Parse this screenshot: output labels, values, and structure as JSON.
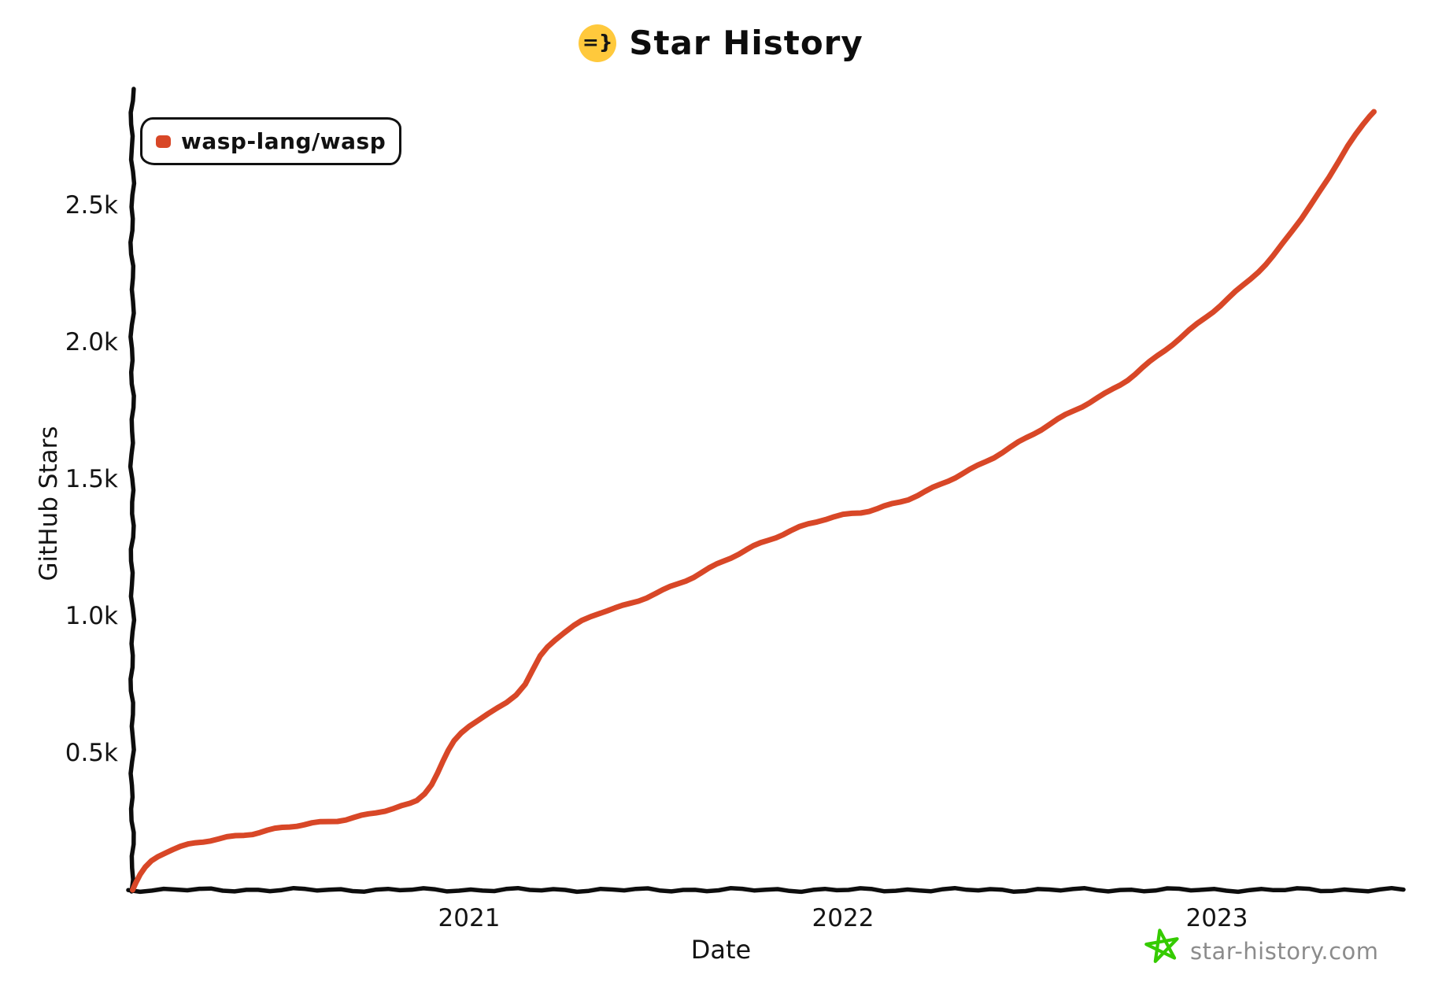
{
  "page": {
    "background": "#ffffff"
  },
  "header": {
    "logo_icon": "=}",
    "logo_color": "#ffc93c",
    "title": "Star History"
  },
  "legend": {
    "label": "wasp-lang/wasp",
    "swatch_color": "#d84727"
  },
  "watermark": {
    "text": "star-history.com",
    "text_color": "#8c8c8c",
    "star_icon_color": "#35cb00"
  },
  "chart_data": {
    "type": "line",
    "title": "Star History",
    "xlabel": "Date",
    "ylabel": "GitHub Stars",
    "grid": false,
    "legend_position": "top-left",
    "x_range": [
      2020.04,
      2023.52
    ],
    "y_range": [
      0,
      2920
    ],
    "x_ticks": [
      {
        "value": 2021,
        "label": "2021"
      },
      {
        "value": 2022,
        "label": "2022"
      },
      {
        "value": 2023,
        "label": "2023"
      }
    ],
    "y_ticks": [
      {
        "value": 500,
        "label": "0.5k"
      },
      {
        "value": 1000,
        "label": "1.0k"
      },
      {
        "value": 1500,
        "label": "1.5k"
      },
      {
        "value": 2000,
        "label": "2.0k"
      },
      {
        "value": 2500,
        "label": "2.5k"
      }
    ],
    "series": [
      {
        "name": "wasp-lang/wasp",
        "color": "#d84727",
        "points": [
          [
            2020.1,
            2
          ],
          [
            2020.12,
            55
          ],
          [
            2020.15,
            105
          ],
          [
            2020.19,
            138
          ],
          [
            2020.25,
            163
          ],
          [
            2020.33,
            188
          ],
          [
            2020.42,
            207
          ],
          [
            2020.5,
            225
          ],
          [
            2020.58,
            242
          ],
          [
            2020.67,
            260
          ],
          [
            2020.75,
            282
          ],
          [
            2020.82,
            303
          ],
          [
            2020.86,
            325
          ],
          [
            2020.9,
            388
          ],
          [
            2020.93,
            470
          ],
          [
            2020.96,
            545
          ],
          [
            2021.0,
            602
          ],
          [
            2021.05,
            640
          ],
          [
            2021.1,
            683
          ],
          [
            2021.15,
            750
          ],
          [
            2021.19,
            852
          ],
          [
            2021.23,
            917
          ],
          [
            2021.28,
            966
          ],
          [
            2021.35,
            1012
          ],
          [
            2021.43,
            1042
          ],
          [
            2021.5,
            1085
          ],
          [
            2021.6,
            1145
          ],
          [
            2021.7,
            1212
          ],
          [
            2021.78,
            1266
          ],
          [
            2021.86,
            1313
          ],
          [
            2021.93,
            1346
          ],
          [
            2022.0,
            1366
          ],
          [
            2022.07,
            1385
          ],
          [
            2022.13,
            1410
          ],
          [
            2022.2,
            1442
          ],
          [
            2022.28,
            1492
          ],
          [
            2022.36,
            1548
          ],
          [
            2022.45,
            1620
          ],
          [
            2022.55,
            1697
          ],
          [
            2022.64,
            1766
          ],
          [
            2022.74,
            1846
          ],
          [
            2022.82,
            1926
          ],
          [
            2022.9,
            2012
          ],
          [
            2022.97,
            2092
          ],
          [
            2023.03,
            2162
          ],
          [
            2023.09,
            2232
          ],
          [
            2023.15,
            2312
          ],
          [
            2023.2,
            2402
          ],
          [
            2023.25,
            2502
          ],
          [
            2023.3,
            2602
          ],
          [
            2023.35,
            2722
          ],
          [
            2023.39,
            2792
          ],
          [
            2023.42,
            2838
          ]
        ]
      }
    ]
  }
}
